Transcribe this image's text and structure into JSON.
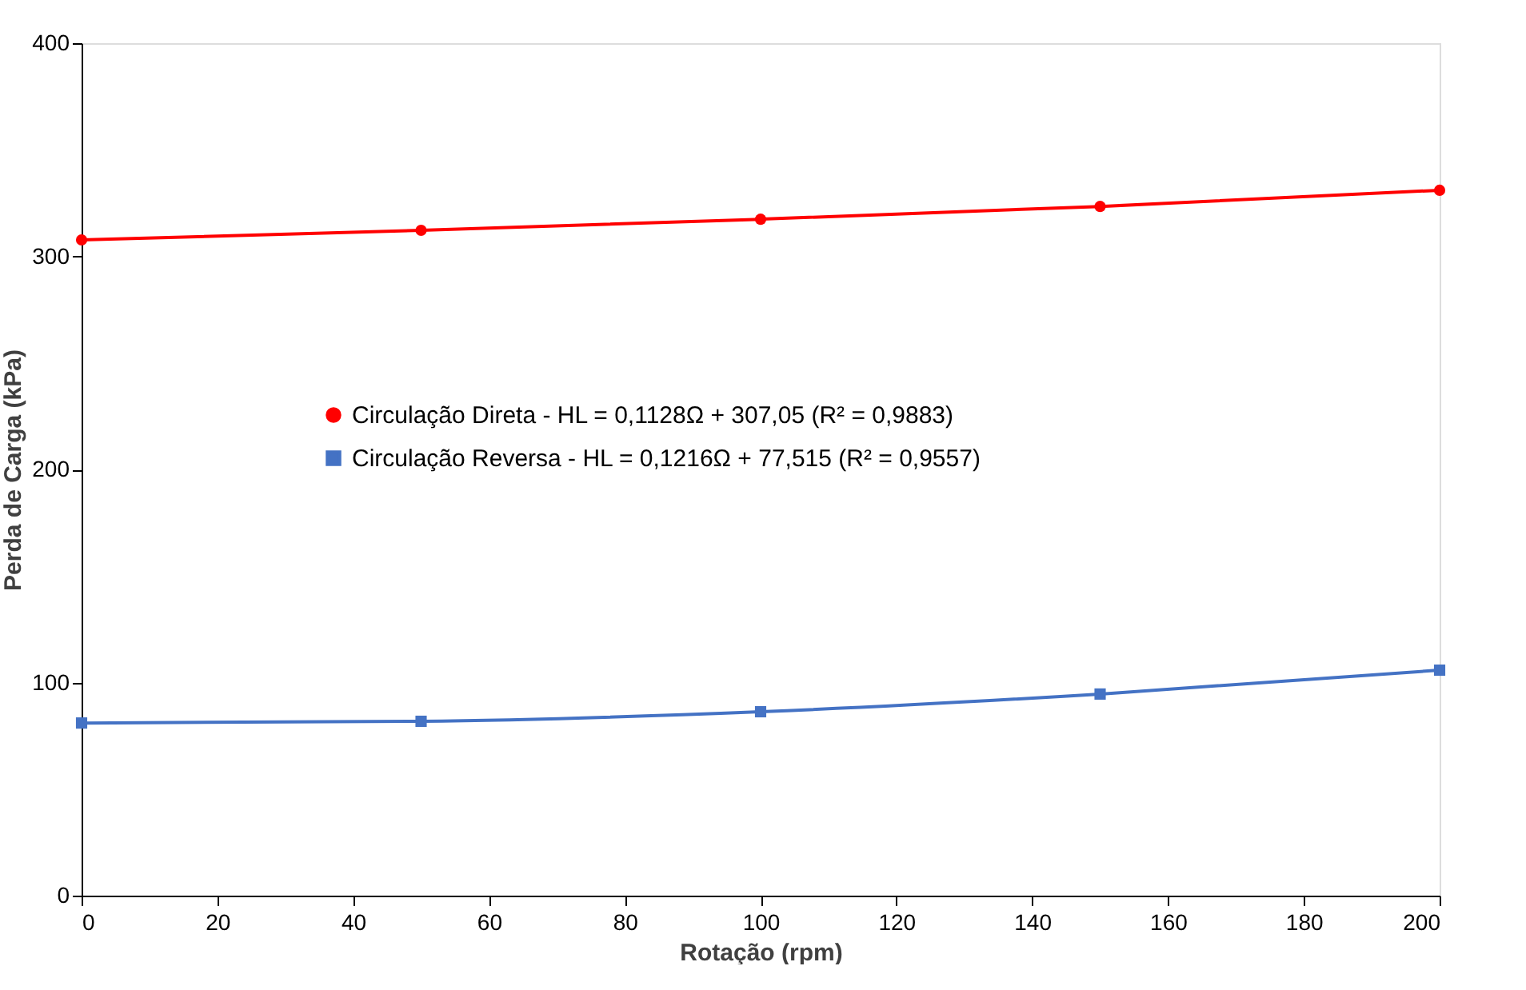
{
  "chart_data": {
    "type": "line",
    "xlabel": "Rotação (rpm)",
    "ylabel": "Perda de Carga (kPa)",
    "x": [
      0,
      50,
      100,
      150,
      200
    ],
    "series": [
      {
        "name": "Circulação Direta  -  HL = 0,1128Ω + 307,05   (R² = 0,9883)",
        "color": "#ff0000",
        "marker": "circle",
        "values": [
          307.7,
          312.2,
          317.4,
          323.4,
          331
        ]
      },
      {
        "name": "Circulação Reversa  -  HL = 0,1216Ω + 77,515   (R² = 0,9557)",
        "color": "#4472c4",
        "marker": "square",
        "values": [
          81,
          81.8,
          86.3,
          94.6,
          105.8
        ]
      }
    ],
    "xlim": [
      0,
      200
    ],
    "xticks": [
      0,
      20,
      40,
      60,
      80,
      100,
      120,
      140,
      160,
      180,
      200
    ],
    "ylim": [
      0,
      400
    ],
    "yticks": [
      0,
      100,
      200,
      300,
      400
    ],
    "grid": false,
    "legend": "left",
    "line_style": "solid"
  }
}
